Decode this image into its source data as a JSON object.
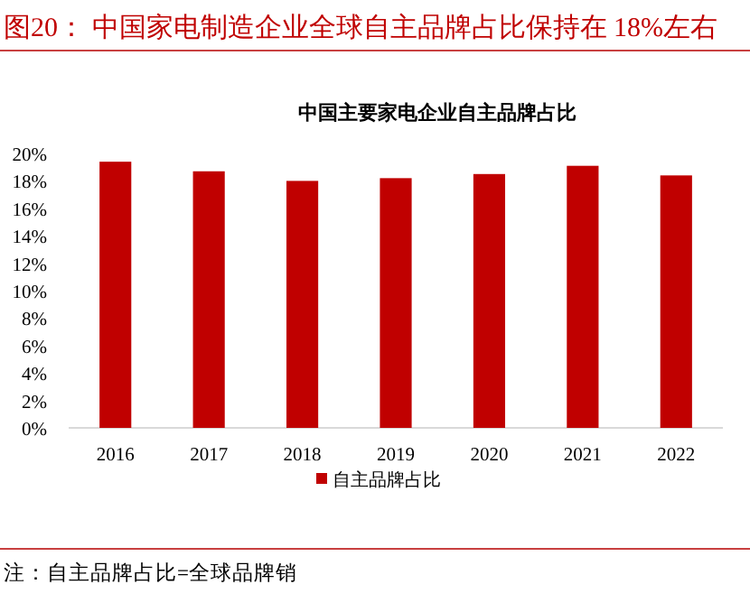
{
  "chart_data": {
    "type": "bar",
    "title": "图20：  中国家电制造企业全球自主品牌占比保持在 18%左右",
    "subtitle": "中国主要家电企业自主品牌占比",
    "categories": [
      "2016",
      "2017",
      "2018",
      "2019",
      "2020",
      "2021",
      "2022"
    ],
    "series": [
      {
        "name": "自主品牌占比",
        "color": "#c00000",
        "values": [
          19.4,
          18.7,
          18.0,
          18.2,
          18.5,
          19.1,
          18.4
        ]
      }
    ],
    "ylim": [
      0,
      20
    ],
    "yticks": [
      {
        "value": 0,
        "label": "0%"
      },
      {
        "value": 2,
        "label": "2%"
      },
      {
        "value": 4,
        "label": "4%"
      },
      {
        "value": 6,
        "label": "6%"
      },
      {
        "value": 8,
        "label": "8%"
      },
      {
        "value": 10,
        "label": "10%"
      },
      {
        "value": 12,
        "label": "12%"
      },
      {
        "value": 14,
        "label": "14%"
      },
      {
        "value": 16,
        "label": "16%"
      },
      {
        "value": 18,
        "label": "18%"
      },
      {
        "value": 20,
        "label": "20%"
      }
    ],
    "grid": false,
    "legend": "bottom",
    "annotations": [
      "注：自主品牌占比=全球品牌销"
    ]
  }
}
